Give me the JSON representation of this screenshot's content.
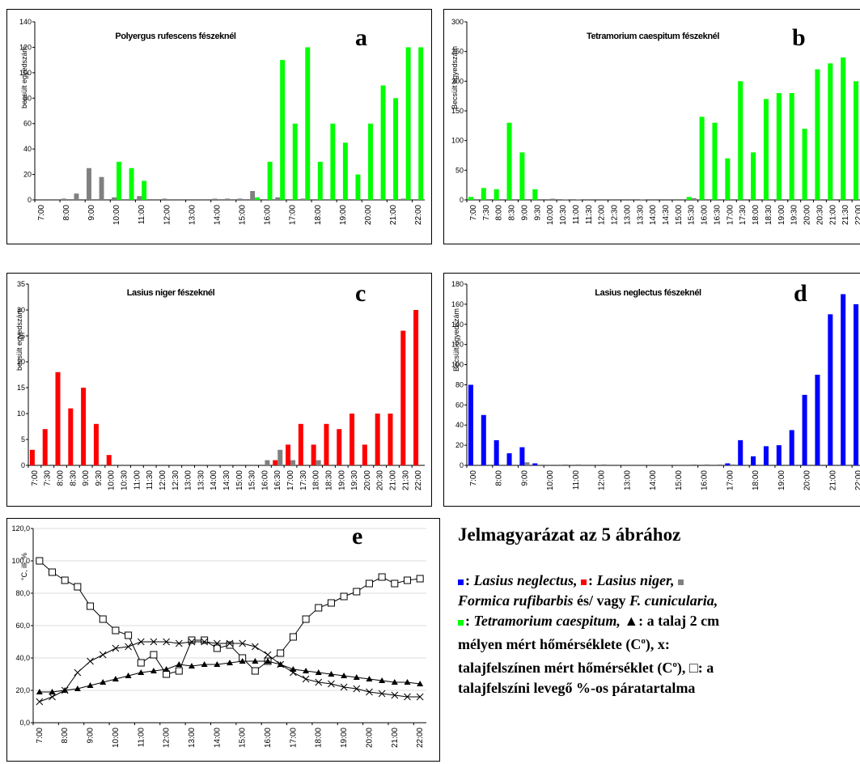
{
  "colors": {
    "green": "#00ff00",
    "grey": "#808080",
    "red": "#ff0000",
    "blue": "#0000ff"
  },
  "chart_data": [
    {
      "id": "a",
      "type": "bar",
      "letter": "a",
      "title": "Polyergus rufescens fészeknél",
      "ylabel": "becsült egyedszám",
      "ylim": [
        0,
        140
      ],
      "yticks": [
        0,
        20,
        40,
        60,
        80,
        100,
        120,
        140
      ],
      "tick_labels": [
        "7:00",
        "8:00",
        "9:00",
        "10:00",
        "11:00",
        "12:00",
        "13:00",
        "14:00",
        "15:00",
        "16:00",
        "17:00",
        "18:00",
        "19:00",
        "20:00",
        "21:00",
        "22:00"
      ],
      "tick_every": 2,
      "categories": [
        "7:00",
        "7:30",
        "8:00",
        "8:30",
        "9:00",
        "9:30",
        "10:00",
        "10:30",
        "11:00",
        "11:30",
        "12:00",
        "12:30",
        "13:00",
        "13:30",
        "14:00",
        "14:30",
        "15:00",
        "15:30",
        "16:00",
        "16:30",
        "17:00",
        "17:30",
        "18:00",
        "18:30",
        "19:00",
        "19:30",
        "20:00",
        "20:30",
        "21:00",
        "21:30",
        "22:00"
      ],
      "series": [
        {
          "color": "grey",
          "values": [
            0,
            0,
            1,
            5,
            25,
            18,
            2,
            0,
            3,
            0,
            1,
            0,
            0,
            0,
            1,
            1,
            1,
            7,
            0,
            2,
            0,
            1,
            0,
            0,
            0,
            0,
            0,
            0,
            0,
            1,
            0
          ]
        },
        {
          "color": "green",
          "values": [
            0,
            0,
            0,
            0,
            0,
            0,
            30,
            25,
            15,
            0,
            0,
            0,
            0,
            0,
            0,
            0,
            0,
            2,
            30,
            110,
            60,
            120,
            30,
            60,
            45,
            20,
            60,
            90,
            80,
            120,
            120
          ]
        }
      ]
    },
    {
      "id": "b",
      "type": "bar",
      "letter": "b",
      "title": "Tetramorium caespitum fészeknél",
      "ylabel": "Becsült egyedszám",
      "ylim": [
        0,
        300
      ],
      "yticks": [
        0,
        50,
        100,
        150,
        200,
        250,
        300
      ],
      "tick_labels": [
        "7:00",
        "7:30",
        "8:00",
        "8:30",
        "9:00",
        "9:30",
        "10:00",
        "10:30",
        "11:00",
        "11:30",
        "12:00",
        "12:30",
        "13:00",
        "13:30",
        "14:00",
        "14:30",
        "15:00",
        "15:30",
        "16:00",
        "16:30",
        "17:00",
        "17:30",
        "18:00",
        "18:30",
        "19:00",
        "19:30",
        "20:00",
        "20:30",
        "21:00",
        "21:30",
        "22:00"
      ],
      "tick_every": 1,
      "categories": [
        "7:00",
        "7:30",
        "8:00",
        "8:30",
        "9:00",
        "9:30",
        "10:00",
        "10:30",
        "11:00",
        "11:30",
        "12:00",
        "12:30",
        "13:00",
        "13:30",
        "14:00",
        "14:30",
        "15:00",
        "15:30",
        "16:00",
        "16:30",
        "17:00",
        "17:30",
        "18:00",
        "18:30",
        "19:00",
        "19:30",
        "20:00",
        "20:30",
        "21:00",
        "21:30",
        "22:00"
      ],
      "series": [
        {
          "color": "green",
          "values": [
            5,
            20,
            18,
            130,
            80,
            18,
            0,
            0,
            0,
            0,
            0,
            0,
            0,
            0,
            0,
            0,
            0,
            5,
            140,
            130,
            70,
            200,
            80,
            170,
            180,
            180,
            120,
            220,
            230,
            240,
            200
          ]
        },
        {
          "color": "grey",
          "values": [
            0,
            0,
            0,
            0,
            0,
            0,
            2,
            1,
            1,
            0,
            0,
            0,
            0,
            1,
            0,
            0,
            0,
            3,
            0,
            0,
            0,
            0,
            0,
            0,
            0,
            0,
            0,
            0,
            0,
            0,
            0
          ]
        }
      ]
    },
    {
      "id": "c",
      "type": "bar",
      "letter": "c",
      "title": "Lasius niger fészeknél",
      "ylabel": "becsült egyedszám",
      "ylim": [
        0,
        35
      ],
      "yticks": [
        0,
        5,
        10,
        15,
        20,
        25,
        30,
        35
      ],
      "tick_labels": [
        "7:00",
        "7:30",
        "8:00",
        "8:30",
        "9:00",
        "9:30",
        "10:00",
        "10:30",
        "11:00",
        "11:30",
        "12:00",
        "12:30",
        "13:00",
        "13:30",
        "14:00",
        "14:30",
        "15:00",
        "15:30",
        "16:00",
        "16:30",
        "17:00",
        "17:30",
        "18:00",
        "18:30",
        "19:00",
        "19:30",
        "20:00",
        "20:30",
        "21:00",
        "21:30",
        "22:00"
      ],
      "tick_every": 1,
      "categories": [
        "7:00",
        "7:30",
        "8:00",
        "8:30",
        "9:00",
        "9:30",
        "10:00",
        "10:30",
        "11:00",
        "11:30",
        "12:00",
        "12:30",
        "13:00",
        "13:30",
        "14:00",
        "14:30",
        "15:00",
        "15:30",
        "16:00",
        "16:30",
        "17:00",
        "17:30",
        "18:00",
        "18:30",
        "19:00",
        "19:30",
        "20:00",
        "20:30",
        "21:00",
        "21:30",
        "22:00"
      ],
      "series": [
        {
          "color": "red",
          "values": [
            3,
            7,
            18,
            11,
            15,
            8,
            2,
            0,
            0,
            0,
            0,
            0,
            0,
            0,
            0,
            0,
            0,
            0,
            0,
            1,
            4,
            8,
            4,
            8,
            7,
            10,
            4,
            10,
            10,
            26,
            30
          ]
        },
        {
          "color": "grey",
          "values": [
            0,
            0,
            0,
            0,
            0,
            0,
            0,
            0,
            0,
            0,
            0,
            0,
            0,
            0,
            0,
            0,
            0,
            0,
            1,
            3,
            1,
            0,
            1,
            0,
            0,
            0,
            0,
            0,
            0,
            0,
            0
          ]
        }
      ]
    },
    {
      "id": "d",
      "type": "bar",
      "letter": "d",
      "title": "Lasius neglectus fészeknél",
      "ylabel": "Becsült egyedszám",
      "ylim": [
        0,
        180
      ],
      "yticks": [
        0,
        20,
        40,
        60,
        80,
        100,
        120,
        140,
        160,
        180
      ],
      "tick_labels": [
        "7:00",
        "8:00",
        "9:00",
        "10:00",
        "11:00",
        "12:00",
        "13:00",
        "14:00",
        "15:00",
        "16:00",
        "17:00",
        "18:00",
        "19:00",
        "20:00",
        "21:00",
        "22:00"
      ],
      "tick_every": 2,
      "categories": [
        "7:00",
        "7:30",
        "8:00",
        "8:30",
        "9:00",
        "9:30",
        "10:00",
        "10:30",
        "11:00",
        "11:30",
        "12:00",
        "12:30",
        "13:00",
        "13:30",
        "14:00",
        "14:30",
        "15:00",
        "15:30",
        "16:00",
        "16:30",
        "17:00",
        "17:30",
        "18:00",
        "18:30",
        "19:00",
        "19:30",
        "20:00",
        "20:30",
        "21:00",
        "21:30",
        "22:00"
      ],
      "series": [
        {
          "color": "blue",
          "values": [
            80,
            50,
            25,
            12,
            18,
            2,
            0,
            0,
            0,
            0,
            0,
            0,
            0,
            0,
            0,
            0,
            0,
            0,
            0,
            0,
            2,
            25,
            9,
            19,
            20,
            35,
            70,
            90,
            150,
            170,
            160
          ]
        },
        {
          "color": "grey",
          "values": [
            0,
            0,
            0,
            0,
            3,
            0,
            0,
            1,
            1,
            0,
            1,
            0,
            0,
            0,
            0,
            0,
            0,
            1,
            1,
            1,
            1,
            0,
            0,
            0,
            0,
            0,
            0,
            0,
            0,
            0,
            0
          ]
        }
      ]
    },
    {
      "id": "e",
      "type": "line",
      "letter": "e",
      "title": "",
      "ylabel": "°C, ill. %",
      "ylim": [
        0,
        120
      ],
      "yticks": [
        "0,0",
        "20,0",
        "40,0",
        "60,0",
        "80,0",
        "100,0",
        "120,0"
      ],
      "tick_labels": [
        "7:00",
        "8:00",
        "9:00",
        "10:00",
        "11:00",
        "12:00",
        "13:00",
        "14:00",
        "15:00",
        "16:00",
        "17:00",
        "18:00",
        "19:00",
        "20:00",
        "21:00",
        "22:00"
      ],
      "tick_every": 2,
      "categories": [
        "7:00",
        "7:30",
        "8:00",
        "8:30",
        "9:00",
        "9:30",
        "10:00",
        "10:30",
        "11:00",
        "11:30",
        "12:00",
        "12:30",
        "13:00",
        "13:30",
        "14:00",
        "14:30",
        "15:00",
        "15:30",
        "16:00",
        "16:30",
        "17:00",
        "17:30",
        "18:00",
        "18:30",
        "19:00",
        "19:30",
        "20:00",
        "20:30",
        "21:00",
        "21:30",
        "22:00"
      ],
      "series": [
        {
          "marker": "square",
          "values": [
            100,
            93,
            88,
            84,
            72,
            64,
            57,
            54,
            37,
            42,
            30,
            32,
            51,
            51,
            46,
            48,
            40,
            32,
            38,
            43,
            53,
            64,
            71,
            74,
            78,
            81,
            86,
            90,
            86,
            88,
            89
          ]
        },
        {
          "marker": "x",
          "values": [
            13,
            16,
            20,
            31,
            38,
            42,
            46,
            47,
            50,
            50,
            50,
            49,
            50,
            50,
            49,
            49,
            49,
            47,
            42,
            36,
            31,
            27,
            25,
            24,
            22,
            21,
            19,
            18,
            17,
            16,
            16
          ]
        },
        {
          "marker": "triangle",
          "values": [
            19,
            19,
            20,
            21,
            23,
            25,
            27,
            29,
            31,
            32,
            33,
            36,
            35,
            36,
            36,
            37,
            38,
            38,
            38,
            36,
            33,
            32,
            31,
            30,
            29,
            28,
            27,
            26,
            25,
            25,
            24
          ]
        }
      ]
    }
  ],
  "legend": {
    "heading": "Jelmagyarázat az 5 ábrához",
    "line1_a": ": ",
    "neglectus": "Lasius neglectus,",
    "line1_b": " ",
    "niger": "Lasius niger,",
    "line1_c": " ",
    "line2_a": "Formica rufibarbis",
    "line2_b": " és/ vagy ",
    "line2_c": "F. cunicularia,",
    "line3_a": ": ",
    "caespitum": "Tetramorium caespitum,",
    "line3_b": " ▲: a talaj 2 cm",
    "line4": "mélyen mért hőmérséklete (C",
    "deg": "o",
    "line4_b": "), x:",
    "line5": "talajfelszínen mért hőmérséklet (C",
    "line5_b": "), □: a",
    "line6": "talajfelszíni levegő %-os páratartalma"
  }
}
